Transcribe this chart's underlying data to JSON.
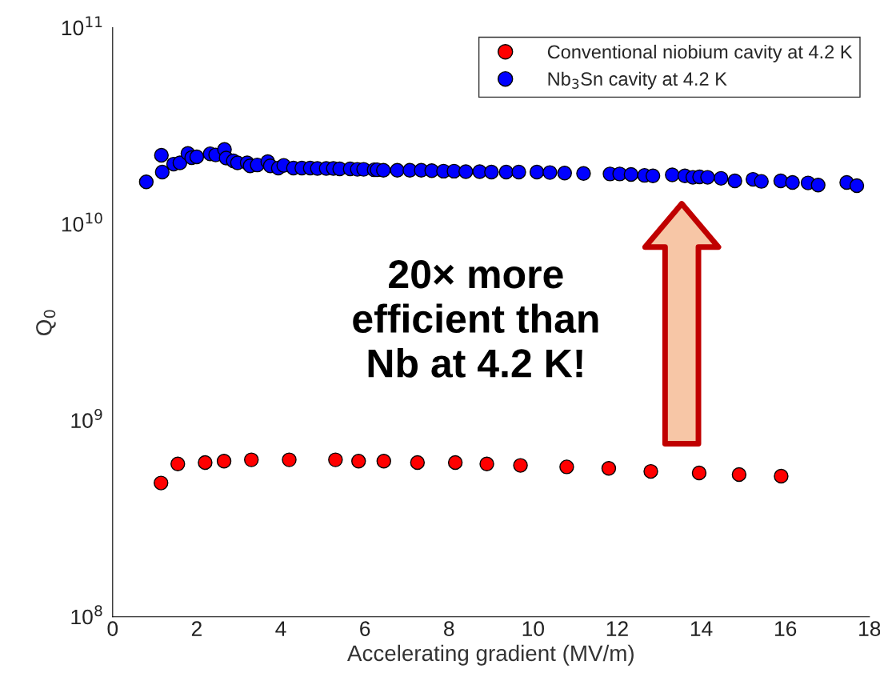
{
  "chart_data": {
    "type": "scatter",
    "xlabel": "Accelerating gradient (MV/m)",
    "ylabel": "Q$_{0}$",
    "log": "y",
    "grid": false,
    "legend": "top right",
    "marker": "circle",
    "xlim": [
      0,
      18
    ],
    "xticks": [
      0,
      2,
      4,
      6,
      8,
      10,
      12,
      14,
      16,
      18
    ],
    "ylim": [
      100000000.0,
      100000000000.0
    ],
    "yticks": [
      {
        "value": 100000000.0,
        "label": "10$^{8}$"
      },
      {
        "value": 1000000000.0,
        "label": "10$^{9}$"
      },
      {
        "value": 10000000000.0,
        "label": "10$^{10}$"
      },
      {
        "value": 100000000000.0,
        "label": "10$^{11}$"
      }
    ],
    "annotations": [
      "20× more\nefficient than\nNb at 4.2 K!"
    ],
    "series": [
      {
        "name": "Conventional niobium cavity at 4.2 K",
        "color": "#ff0000",
        "x": [
          1.15,
          1.55,
          2.2,
          2.65,
          3.3,
          4.2,
          5.3,
          5.85,
          6.45,
          7.25,
          8.15,
          8.9,
          9.7,
          10.8,
          11.8,
          12.8,
          13.95,
          14.9,
          15.9
        ],
        "values": [
          480000000.0,
          600000000.0,
          610000000.0,
          620000000.0,
          630000000.0,
          630000000.0,
          630000000.0,
          620000000.0,
          620000000.0,
          610000000.0,
          610000000.0,
          600000000.0,
          590000000.0,
          580000000.0,
          570000000.0,
          550000000.0,
          540000000.0,
          530000000.0,
          520000000.0
        ]
      },
      {
        "name": "Nb$_{3}$Sn cavity at 4.2 K",
        "color": "#0000ff",
        "x": [
          0.8,
          1.16,
          1.18,
          1.45,
          1.6,
          1.79,
          1.88,
          2.0,
          2.32,
          2.45,
          2.66,
          2.7,
          2.87,
          2.97,
          3.2,
          3.27,
          3.44,
          3.69,
          3.75,
          3.94,
          4.07,
          4.3,
          4.5,
          4.7,
          4.87,
          5.08,
          5.25,
          5.4,
          5.65,
          5.82,
          5.97,
          6.22,
          6.29,
          6.44,
          6.77,
          7.07,
          7.34,
          7.59,
          7.87,
          8.12,
          8.4,
          8.73,
          9.01,
          9.36,
          9.66,
          10.09,
          10.4,
          10.75,
          11.2,
          11.83,
          12.06,
          12.33,
          12.65,
          12.85,
          13.31,
          13.61,
          13.8,
          13.96,
          14.15,
          14.47,
          14.8,
          15.23,
          15.43,
          15.89,
          16.17,
          16.54,
          16.78,
          17.46,
          17.7
        ],
        "values": [
          16400000000.0,
          22400000000.0,
          18400000000.0,
          20200000000.0,
          20500000000.0,
          22900000000.0,
          21800000000.0,
          22000000000.0,
          22800000000.0,
          22500000000.0,
          24000000000.0,
          21700000000.0,
          21000000000.0,
          20500000000.0,
          20500000000.0,
          19800000000.0,
          20000000000.0,
          20800000000.0,
          19800000000.0,
          19300000000.0,
          19900000000.0,
          19300000000.0,
          19300000000.0,
          19300000000.0,
          19200000000.0,
          19200000000.0,
          19200000000.0,
          19100000000.0,
          19100000000.0,
          19000000000.0,
          19000000000.0,
          18900000000.0,
          18900000000.0,
          18800000000.0,
          18800000000.0,
          18800000000.0,
          18800000000.0,
          18700000000.0,
          18600000000.0,
          18600000000.0,
          18500000000.0,
          18500000000.0,
          18400000000.0,
          18400000000.0,
          18400000000.0,
          18400000000.0,
          18300000000.0,
          18200000000.0,
          18100000000.0,
          18000000000.0,
          18000000000.0,
          17900000000.0,
          17700000000.0,
          17600000000.0,
          17800000000.0,
          17600000000.0,
          17300000000.0,
          17400000000.0,
          17300000000.0,
          17100000000.0,
          16600000000.0,
          16900000000.0,
          16500000000.0,
          16600000000.0,
          16300000000.0,
          16200000000.0,
          15800000000.0,
          16300000000.0,
          15700000000.0
        ]
      }
    ]
  }
}
